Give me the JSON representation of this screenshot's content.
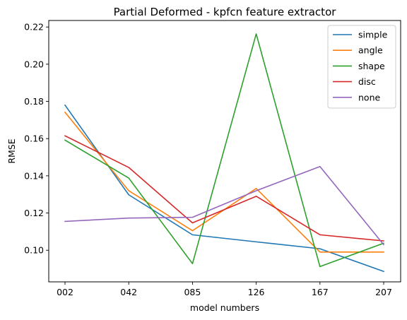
{
  "chart_data": {
    "type": "line",
    "title": "Partial Deformed - kpfcn feature extractor",
    "xlabel": "model numbers",
    "ylabel": "RMSE",
    "categories": [
      "002",
      "042",
      "085",
      "126",
      "167",
      "207"
    ],
    "ylim": [
      0.083,
      0.2235
    ],
    "yticks": [
      "0.10",
      "0.12",
      "0.14",
      "0.16",
      "0.18",
      "0.20",
      "0.22"
    ],
    "ytick_values": [
      0.1,
      0.12,
      0.14,
      0.16,
      0.18,
      0.2,
      0.22
    ],
    "grid": false,
    "legend_position": "top-right",
    "series": [
      {
        "name": "simple",
        "color": "#1f77b4",
        "values": [
          0.178,
          0.1298,
          0.1083,
          0.1045,
          0.1008,
          0.0886
        ]
      },
      {
        "name": "angle",
        "color": "#ff7f0e",
        "values": [
          0.1742,
          0.132,
          0.1105,
          0.1332,
          0.099,
          0.099
        ]
      },
      {
        "name": "shape",
        "color": "#2ca02c",
        "values": [
          0.1592,
          0.1388,
          0.0928,
          0.2163,
          0.0912,
          0.1038
        ]
      },
      {
        "name": "disc",
        "color": "#d62728",
        "values": [
          0.1615,
          0.1445,
          0.1147,
          0.129,
          0.1083,
          0.105
        ]
      },
      {
        "name": "none",
        "color": "#9467bd",
        "values": [
          0.1155,
          0.1173,
          0.1177,
          0.132,
          0.145,
          0.103
        ]
      }
    ]
  }
}
